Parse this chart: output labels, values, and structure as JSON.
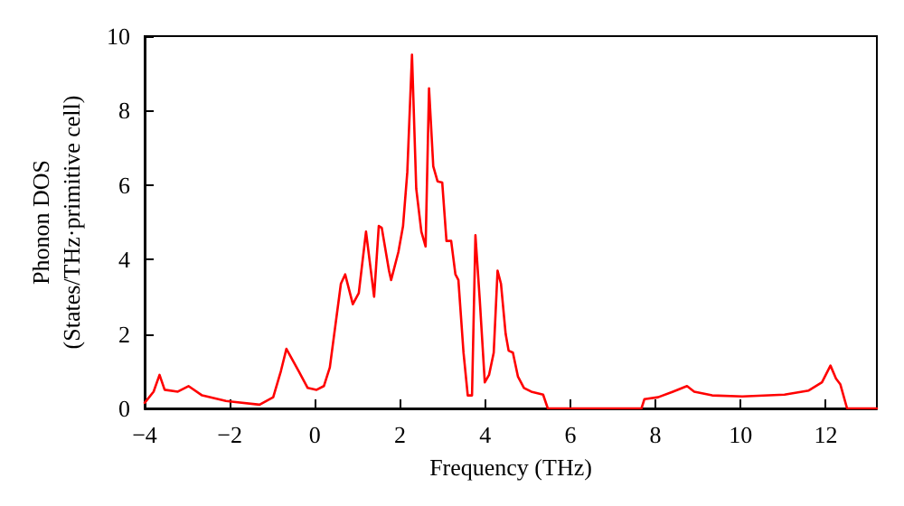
{
  "chart_data": {
    "type": "line",
    "xlabel": "Frequency (THz)",
    "ylabel": "Phonon DOS\n(States/THz·primitive cell)",
    "xlim": [
      -4,
      13.2
    ],
    "xticks": [
      -4,
      -2,
      0,
      2,
      4,
      6,
      8,
      10,
      12
    ],
    "ylim": [
      0,
      10
    ],
    "yticks": [
      0,
      2,
      4,
      6,
      8,
      10
    ],
    "grid": false,
    "marker": "none",
    "line_style": "solid",
    "series": [
      {
        "color": "#ff0000",
        "x": [
          -4,
          -3.79,
          -3.65,
          -3.53,
          -3.22,
          -2.97,
          -2.65,
          -2.09,
          -1.3,
          -0.98,
          -0.8,
          -0.67,
          -0.38,
          -0.17,
          0.04,
          0.21,
          0.35,
          0.61,
          0.71,
          0.89,
          1.03,
          1.2,
          1.39,
          1.5,
          1.57,
          1.74,
          1.79,
          1.96,
          2.07,
          2.17,
          2.28,
          2.38,
          2.5,
          2.6,
          2.68,
          2.78,
          2.88,
          2.99,
          3.09,
          3.2,
          3.3,
          3.37,
          3.49,
          3.59,
          3.69,
          3.77,
          3.87,
          3.99,
          4.09,
          4.2,
          4.29,
          4.37,
          4.48,
          4.55,
          4.65,
          4.77,
          4.91,
          5.08,
          5.36,
          5.47,
          7.67,
          7.74,
          8.06,
          8.41,
          8.74,
          8.91,
          9.33,
          10.04,
          11.03,
          11.6,
          11.91,
          12.11,
          12.24,
          12.34,
          12.5,
          13.2
        ],
        "values": [
          0.15,
          0.45,
          0.9,
          0.5,
          0.45,
          0.6,
          0.35,
          0.2,
          0.1,
          0.3,
          1.0,
          1.6,
          1.0,
          0.55,
          0.5,
          0.6,
          1.1,
          3.35,
          3.6,
          2.8,
          3.1,
          4.75,
          3.0,
          4.9,
          4.85,
          3.7,
          3.45,
          4.2,
          4.9,
          6.35,
          9.5,
          5.9,
          4.75,
          4.35,
          8.6,
          6.5,
          6.1,
          6.07,
          4.5,
          4.5,
          3.6,
          3.45,
          1.5,
          0.35,
          0.35,
          4.65,
          2.95,
          0.7,
          0.9,
          1.5,
          3.7,
          3.35,
          2.0,
          1.55,
          1.5,
          0.85,
          0.55,
          0.45,
          0.37,
          0,
          0,
          0.25,
          0.3,
          0.45,
          0.6,
          0.45,
          0.35,
          0.32,
          0.37,
          0.48,
          0.7,
          1.15,
          0.8,
          0.65,
          0,
          0
        ]
      }
    ]
  }
}
